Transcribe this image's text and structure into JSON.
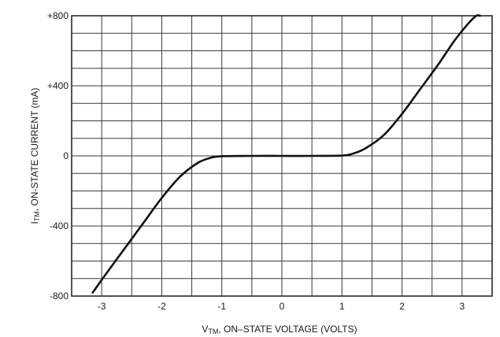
{
  "chart_data": {
    "type": "line",
    "xlabel": "V<sub>TM</sub>, ON–STATE VOLTAGE (VOLTS)",
    "xlabel_parts": {
      "prefix": "V",
      "sub": "TM",
      "rest": ", ON–STATE VOLTAGE (VOLTS)"
    },
    "ylabel_parts": {
      "prefix": "I",
      "sub": "TM",
      "rest": ", ON-STATE CURRENT (mA)"
    },
    "xlim": [
      -3.5,
      3.5
    ],
    "ylim": [
      -800,
      800
    ],
    "x_ticks": [
      -3,
      -2,
      -1,
      0,
      1,
      2,
      3
    ],
    "x_tick_labels": [
      "-3",
      "-2",
      "-1",
      "0",
      "1",
      "2",
      "3"
    ],
    "y_ticks": [
      800,
      400,
      0,
      -400,
      -800
    ],
    "y_tick_labels": [
      "+800",
      "+400",
      "0",
      "-400",
      "-800"
    ],
    "grid": true,
    "series": [
      {
        "x": [
          -3.15,
          -2.9,
          -2.6,
          -2.3,
          -2.0,
          -1.7,
          -1.4,
          -1.2,
          -1.0,
          -0.5,
          0.0,
          0.5,
          1.0,
          1.2,
          1.4,
          1.7,
          2.0,
          2.3,
          2.6,
          2.9,
          3.2,
          3.3
        ],
        "y": [
          -780,
          -660,
          -520,
          -380,
          -240,
          -120,
          -40,
          -12,
          -2,
          0,
          0,
          0,
          2,
          15,
          45,
          120,
          240,
          380,
          520,
          670,
          790,
          800
        ]
      }
    ]
  }
}
